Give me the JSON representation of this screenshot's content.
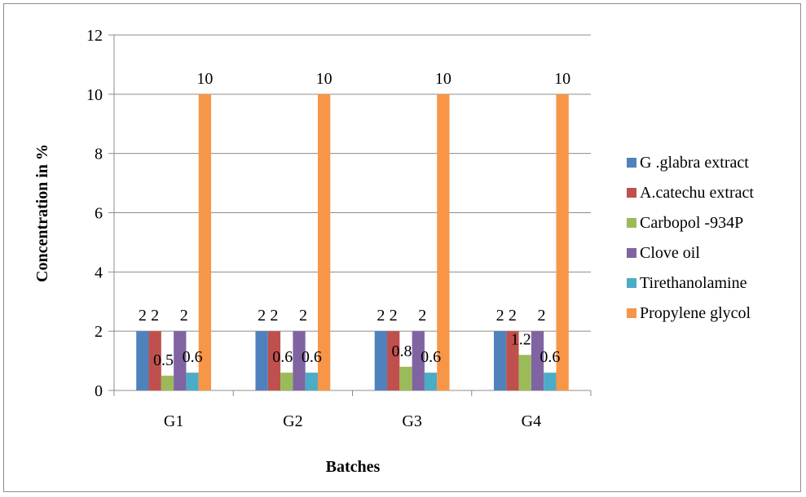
{
  "chart_data": {
    "type": "bar",
    "title": "",
    "xlabel": "Batches",
    "ylabel": "Concentration in %",
    "ylim": [
      0,
      12
    ],
    "yticks": [
      "0",
      "2",
      "4",
      "6",
      "8",
      "10",
      "12"
    ],
    "categories": [
      "G1",
      "G2",
      "G3",
      "G4"
    ],
    "grid": true,
    "legend_position": "right",
    "series": [
      {
        "name": "G .glabra extract",
        "color": "#4F81BD",
        "values": [
          2,
          2,
          2,
          2
        ],
        "labels": [
          "2",
          "2",
          "2",
          "2"
        ]
      },
      {
        "name": "A.catechu extract",
        "color": "#C0504D",
        "values": [
          2,
          2,
          2,
          2
        ],
        "labels": [
          "2",
          "2",
          "2",
          "2"
        ]
      },
      {
        "name": "Carbopol -934P",
        "color": "#9BBB59",
        "values": [
          0.5,
          0.6,
          0.8,
          1.2
        ],
        "labels": [
          "0.5",
          "0.6",
          "0.8",
          "1.2"
        ]
      },
      {
        "name": "Clove oil",
        "color": "#8064A2",
        "values": [
          2,
          2,
          2,
          2
        ],
        "labels": [
          "2",
          "2",
          "2",
          "2"
        ]
      },
      {
        "name": "Tirethanolamine",
        "color": "#4BACC6",
        "values": [
          0.6,
          0.6,
          0.6,
          0.6
        ],
        "labels": [
          "0.6",
          "0.6",
          "0.6",
          "0.6"
        ]
      },
      {
        "name": "Propylene glycol",
        "color": "#F79646",
        "values": [
          10,
          10,
          10,
          10
        ],
        "labels": [
          "10",
          "10",
          "10",
          "10"
        ]
      }
    ]
  }
}
